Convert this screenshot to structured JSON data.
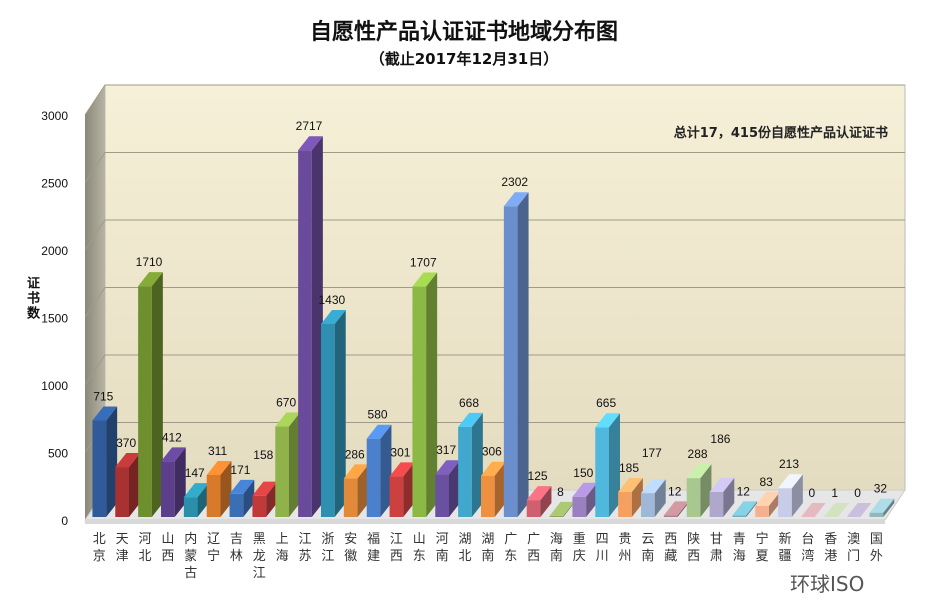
{
  "chart_data": {
    "type": "bar",
    "title": "自愿性产品认证证书地域分布图",
    "subtitle": "（截止2017年12月31日）",
    "ylabel": "证书数",
    "annotation": "总计17，415份自愿性产品认证证书",
    "ylim": [
      0,
      3000
    ],
    "yticks": [
      0,
      500,
      1000,
      1500,
      2000,
      2500,
      3000
    ],
    "grid": true,
    "three_d": true,
    "categories": [
      "北京",
      "天津",
      "河北",
      "山西",
      "内蒙古",
      "辽宁",
      "吉林",
      "黑龙江",
      "上海",
      "江苏",
      "浙江",
      "安徽",
      "福建",
      "江西",
      "山东",
      "河南",
      "湖北",
      "湖南",
      "广东",
      "广西",
      "海南",
      "重庆",
      "四川",
      "贵州",
      "云南",
      "西藏",
      "陕西",
      "甘肃",
      "青海",
      "宁夏",
      "新疆",
      "台湾",
      "香港",
      "澳门",
      "国外"
    ],
    "values": [
      715,
      370,
      1710,
      412,
      147,
      311,
      171,
      158,
      670,
      2717,
      1430,
      286,
      580,
      301,
      1707,
      317,
      668,
      306,
      2302,
      125,
      8,
      150,
      665,
      185,
      177,
      12,
      288,
      186,
      12,
      83,
      213,
      0,
      1,
      0,
      32
    ],
    "colors": [
      "#2f5b9a",
      "#a83232",
      "#6e8f2e",
      "#5b3f8a",
      "#2a8fa8",
      "#d97a2a",
      "#3a6fb5",
      "#c03a3a",
      "#8fb24a",
      "#6a4a9a",
      "#2f8fb0",
      "#e08a3a",
      "#4a80cc",
      "#cc4040",
      "#8cb845",
      "#6a50a0",
      "#40a8cc",
      "#ee9040",
      "#6a8fcc",
      "#d06070",
      "#8fa860",
      "#9a80c0",
      "#50b8dd",
      "#f5a060",
      "#a0b8d8",
      "#b08088",
      "#a8c890",
      "#b0a8cc",
      "#70b0c0",
      "#f5b090",
      "#c8cce8",
      "#c09aa0",
      "#b0bca0",
      "#a8a0b8",
      "#90b8c0"
    ]
  },
  "watermark": "环球ISO"
}
